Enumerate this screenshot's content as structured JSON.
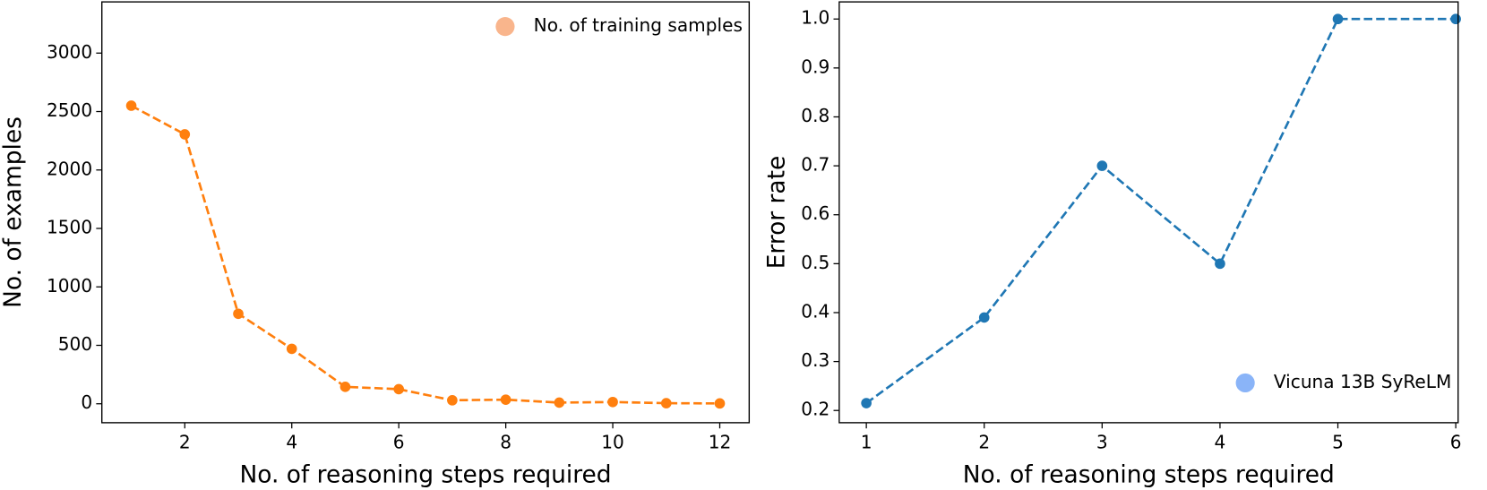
{
  "chart_data": [
    {
      "type": "line",
      "x_label": "No. of reasoning steps required",
      "y_label": "No. of examples",
      "x": [
        1,
        2,
        3,
        4,
        5,
        6,
        7,
        8,
        9,
        10,
        11,
        12
      ],
      "series": [
        {
          "name": "No. of training samples",
          "color": "#ff7f0e",
          "legend_marker_color": "#f9b58c",
          "values": [
            2550,
            2305,
            770,
            470,
            145,
            125,
            30,
            35,
            10,
            15,
            5,
            3
          ]
        }
      ],
      "xlim": [
        0.45,
        12.55
      ],
      "ylim": [
        -162,
        3438
      ],
      "xticks": [
        2,
        4,
        6,
        8,
        10,
        12
      ],
      "yticks": [
        0,
        500,
        1000,
        1500,
        2000,
        2500,
        3000
      ],
      "legend": "upper right",
      "line_style": "dashed"
    },
    {
      "type": "line",
      "x_label": "No. of reasoning steps required",
      "y_label": "Error rate",
      "x": [
        1,
        2,
        3,
        4,
        5,
        6
      ],
      "series": [
        {
          "name": "Vicuna 13B SyReLM",
          "color": "#1f77b4",
          "legend_marker_color": "#8ab4f8",
          "values": [
            0.215,
            0.39,
            0.7,
            0.5,
            1.0,
            1.0
          ]
        }
      ],
      "xlim": [
        0.77,
        6.02
      ],
      "ylim": [
        0.175,
        1.035
      ],
      "xticks": [
        1,
        2,
        3,
        4,
        5,
        6
      ],
      "yticks": [
        0.2,
        0.3,
        0.4,
        0.5,
        0.6,
        0.7,
        0.8,
        0.9,
        {
          "value": 1,
          "label": "1.0"
        }
      ],
      "legend": "lower right",
      "line_style": "dashed"
    }
  ]
}
